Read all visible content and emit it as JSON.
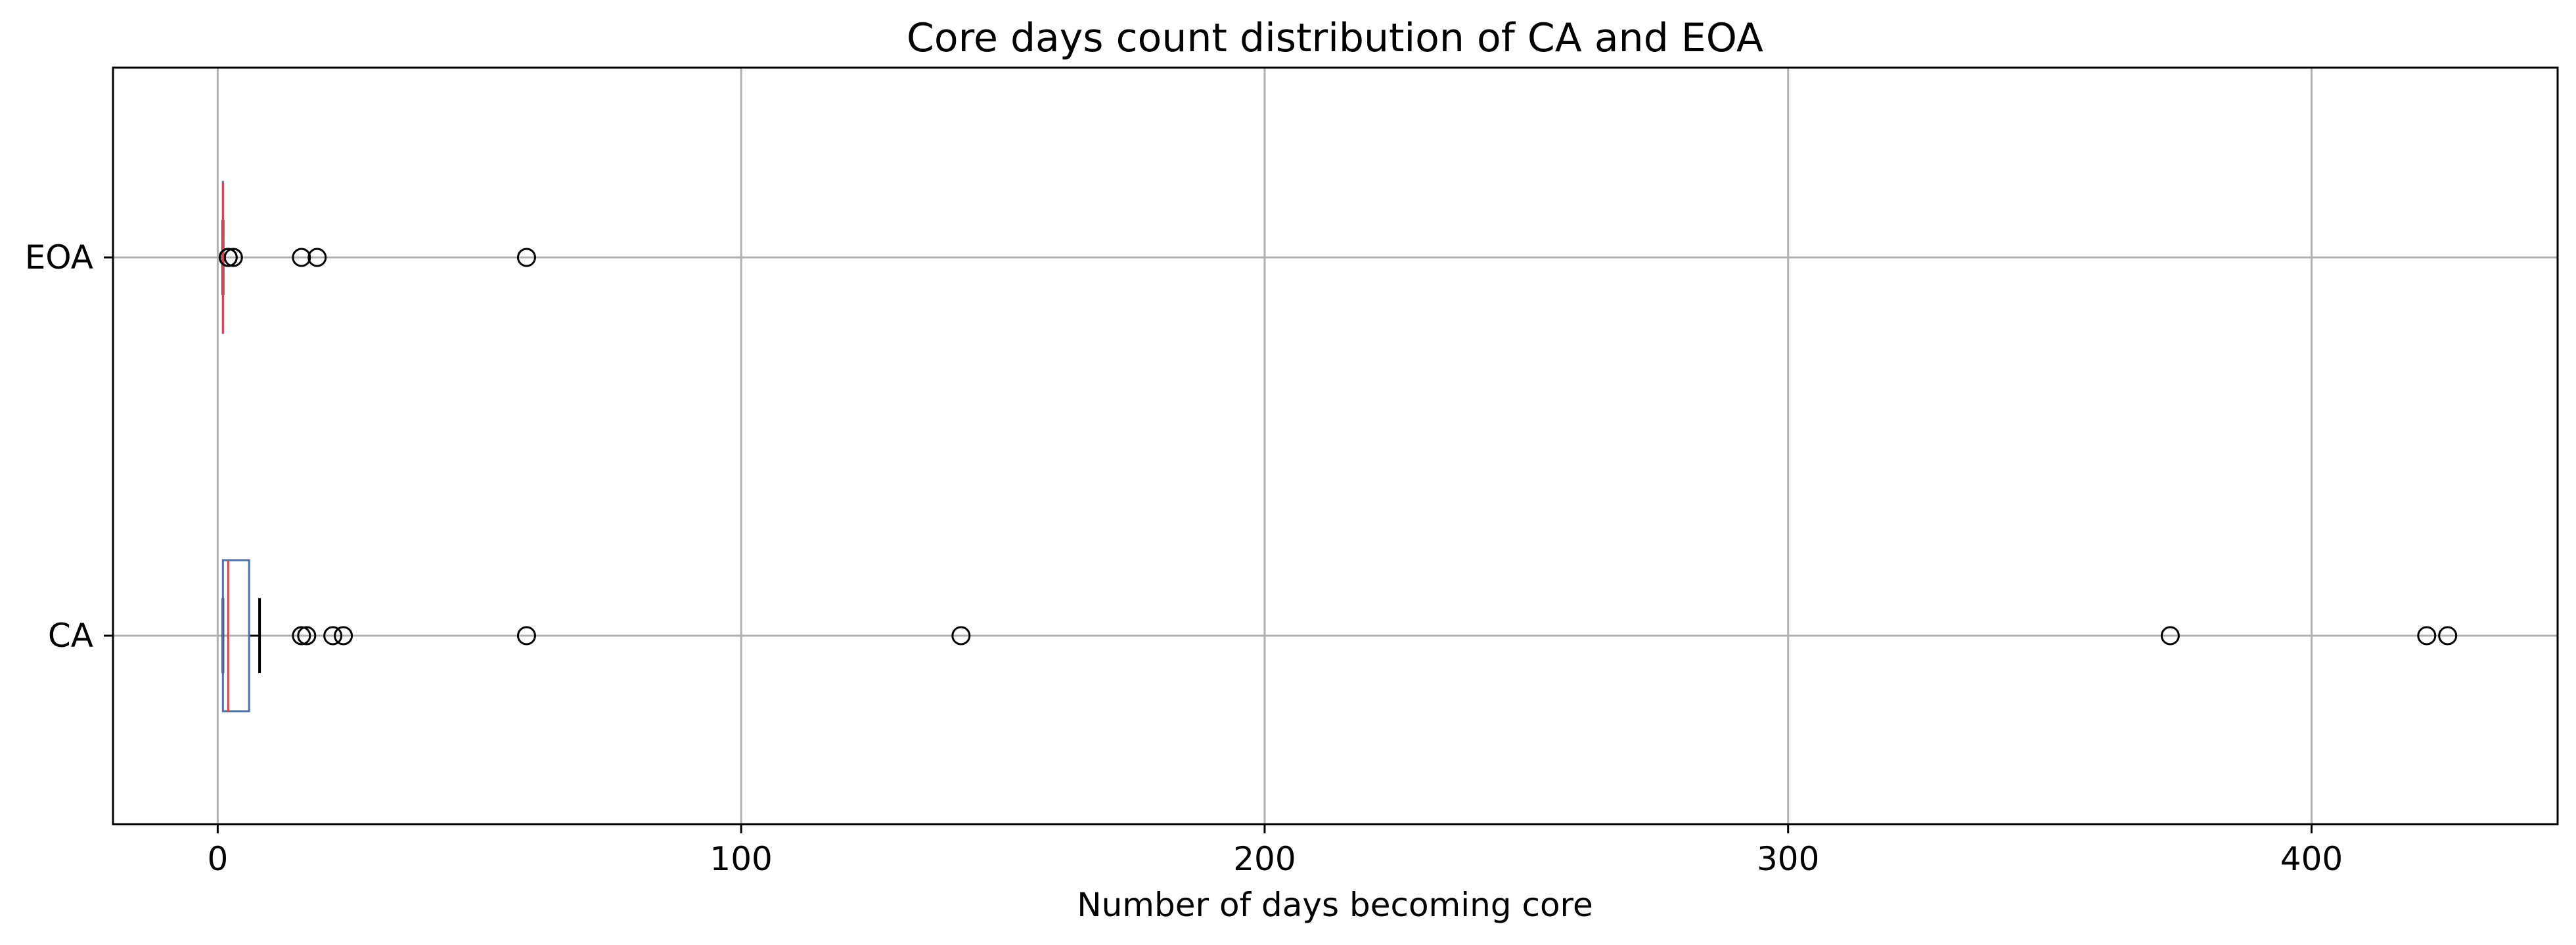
{
  "chart_data": {
    "type": "boxplot",
    "orientation": "horizontal",
    "title": "Core days count distribution of CA and EOA",
    "xlabel": "Number of days becoming core",
    "ylabel": "",
    "xlim": [
      -20,
      447
    ],
    "xticks": [
      0,
      100,
      200,
      300,
      400
    ],
    "grid": true,
    "colors": {
      "box": "#4c72b0",
      "median": "#d9444f",
      "whisker": "#000000",
      "flier": "#000000",
      "grid": "#b0b0b0"
    },
    "categories": [
      "CA",
      "EOA"
    ],
    "series": [
      {
        "name": "CA",
        "whisker_low": 1,
        "q1": 1,
        "median": 2,
        "q3": 6,
        "whisker_high": 8,
        "fliers": [
          16,
          17,
          22,
          24,
          59,
          142,
          373,
          422,
          426
        ]
      },
      {
        "name": "EOA",
        "whisker_low": 1,
        "q1": 1,
        "median": 1,
        "q3": 1,
        "whisker_high": 1,
        "fliers": [
          2,
          2,
          3,
          16,
          19,
          59
        ]
      }
    ]
  }
}
